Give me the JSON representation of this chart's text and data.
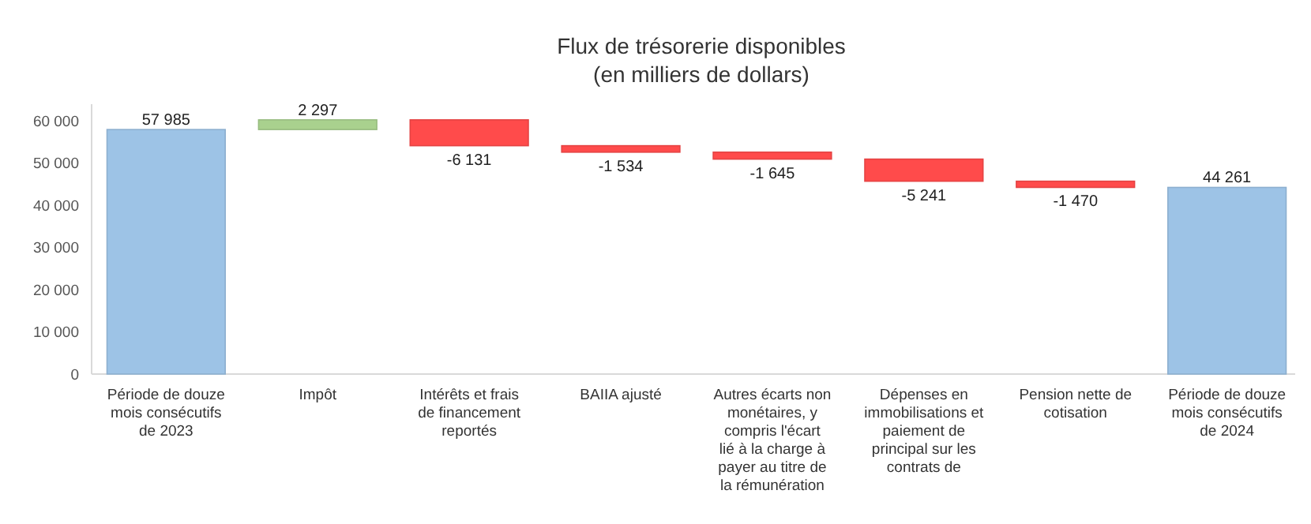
{
  "chart_data": {
    "type": "bar",
    "title": "Flux de trésorerie disponibles",
    "subtitle": "(en milliers de dollars)",
    "categories": [
      "Période de douze mois consécutifs de 2023",
      "Impôt",
      "Intérêts et frais de financement reportés",
      "BAIIA ajusté",
      "Autres écarts non monétaires, y compris l'écart lié à la charge à payer au titre de la rémunération",
      "Dépenses en immobilisations et paiement de principal sur les contrats de",
      "Pension nette de cotisation",
      "Période de douze mois consécutifs de 2024"
    ],
    "values": [
      57985,
      2297,
      -6131,
      -1534,
      -1645,
      -5241,
      -1470,
      44261
    ],
    "base": [
      0,
      57985,
      60282,
      54151,
      52617,
      50972,
      45731,
      0
    ],
    "colors": [
      "#9dc3e6",
      "#a9d18e",
      "#ff4b4b",
      "#ff4b4b",
      "#ff4b4b",
      "#ff4b4b",
      "#ff4b4b",
      "#9dc3e6"
    ],
    "value_labels": [
      "57 985",
      "2 297",
      "-6 131",
      "-1 534",
      "-1 645",
      "-5 241",
      "-1 470",
      "44 261"
    ],
    "ylim": [
      0,
      64000
    ],
    "yticks": [
      0,
      {
        "value": 10000,
        "label": "10 000"
      },
      {
        "value": 20000,
        "label": "20 000"
      },
      {
        "value": 30000,
        "label": "30 000"
      },
      {
        "value": 40000,
        "label": "40 000"
      },
      {
        "value": 50000,
        "label": "50 000"
      },
      {
        "value": 60000,
        "label": "60 000"
      }
    ],
    "grid": false
  }
}
